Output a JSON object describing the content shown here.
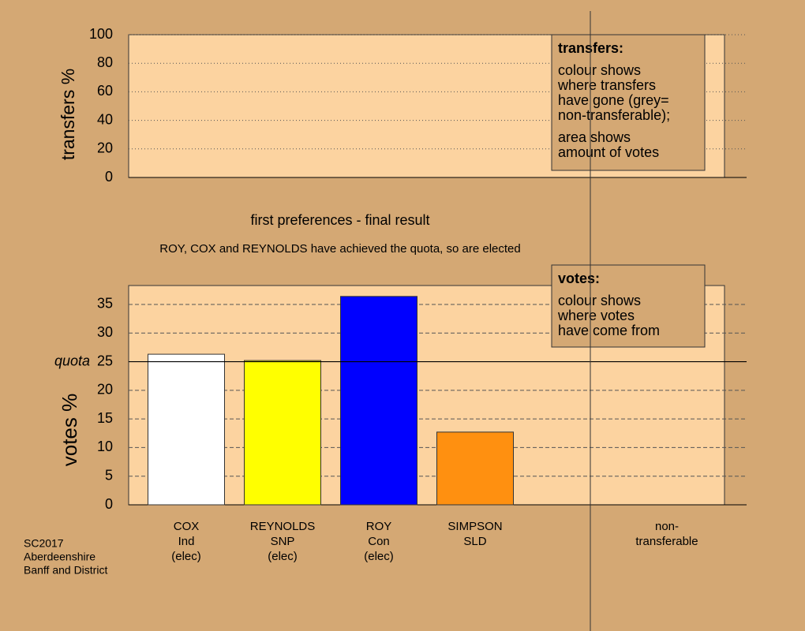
{
  "chart_data": [
    {
      "type": "bar",
      "ylabel": "transfers %",
      "ylim": [
        0,
        100
      ],
      "yticks": [
        0,
        20,
        40,
        60,
        80,
        100
      ],
      "grid": true,
      "legend": {
        "title": "transfers:",
        "paragraphs": [
          [
            "colour shows",
            "where transfers",
            "have gone (grey=",
            "non-transferable);"
          ],
          [
            "area shows",
            "amount of votes"
          ]
        ]
      }
    },
    {
      "type": "bar",
      "title": "first preferences - final result",
      "subtitle": "ROY, COX and REYNOLDS have achieved the quota, so are elected",
      "ylabel": "votes %",
      "ylim": [
        0,
        38.3
      ],
      "yticks": [
        0,
        5,
        10,
        15,
        20,
        25,
        30,
        35
      ],
      "grid": true,
      "categories": [
        [
          "COX",
          "Ind",
          "(elec)"
        ],
        [
          "REYNOLDS",
          "SNP",
          "(elec)"
        ],
        [
          "ROY",
          "Con",
          "(elec)"
        ],
        [
          "SIMPSON",
          "SLD"
        ]
      ],
      "values": [
        26.3,
        25.2,
        36.4,
        12.7
      ],
      "colors": [
        "#ffffff",
        "#ffff00",
        "#0000ff",
        "#ff9010"
      ],
      "quota": {
        "label": "quota",
        "value": 25
      },
      "nontransferable_label": [
        "non-",
        "transferable"
      ],
      "legend": {
        "title": "votes:",
        "paragraphs": [
          [
            "colour shows",
            "where votes",
            "have come from"
          ]
        ]
      }
    }
  ],
  "footer": [
    "SC2017",
    "Aberdeenshire",
    "Banff and District"
  ]
}
